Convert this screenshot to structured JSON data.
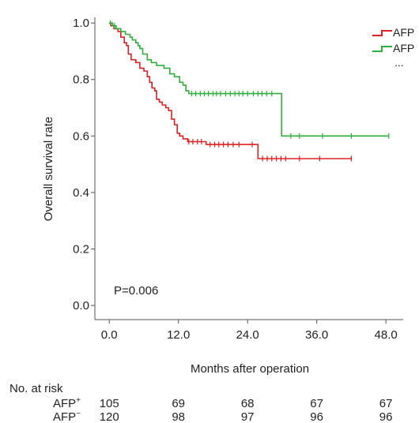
{
  "chart_data": {
    "type": "line",
    "step": true,
    "xlabel": "Months after operation",
    "ylabel": "Overall survival rate",
    "xlim": [
      -2.5,
      51
    ],
    "ylim": [
      -0.05,
      1.02
    ],
    "xticks": [
      "0.0",
      "12.0",
      "24.0",
      "36.0",
      "48.0"
    ],
    "xtick_values": [
      0,
      12,
      24,
      36,
      48
    ],
    "yticks": [
      "0.0",
      "0.2",
      "0.4",
      "0.6",
      "0.8",
      "1.0"
    ],
    "ytick_values": [
      0.0,
      0.2,
      0.4,
      0.6,
      0.8,
      1.0
    ],
    "grid": false,
    "legend": {
      "placement": "top-right",
      "entries": [
        {
          "label": "AFP",
          "color": "#e02020"
        },
        {
          "label": "AFP",
          "color": "#2fae3c"
        }
      ],
      "more": "..."
    },
    "annotation": "P=0.006",
    "series": [
      {
        "color": "#e02020",
        "points": [
          [
            0,
            1.0
          ],
          [
            0.3,
            0.99
          ],
          [
            0.8,
            0.98
          ],
          [
            1.5,
            0.97
          ],
          [
            2.0,
            0.95
          ],
          [
            2.6,
            0.93
          ],
          [
            3.0,
            0.92
          ],
          [
            3.3,
            0.89
          ],
          [
            3.8,
            0.87
          ],
          [
            4.6,
            0.86
          ],
          [
            5.3,
            0.84
          ],
          [
            6.0,
            0.83
          ],
          [
            6.6,
            0.81
          ],
          [
            7.0,
            0.79
          ],
          [
            7.4,
            0.77
          ],
          [
            7.9,
            0.76
          ],
          [
            8.2,
            0.73
          ],
          [
            8.7,
            0.72
          ],
          [
            9.2,
            0.71
          ],
          [
            9.8,
            0.7
          ],
          [
            10.3,
            0.69
          ],
          [
            10.8,
            0.66
          ],
          [
            11.3,
            0.64
          ],
          [
            11.8,
            0.61
          ],
          [
            12.2,
            0.6
          ],
          [
            12.8,
            0.59
          ],
          [
            13.6,
            0.58
          ],
          [
            16.8,
            0.57
          ],
          [
            25.8,
            0.52
          ],
          [
            42.0,
            0.52
          ]
        ],
        "censored": [
          [
            13.8,
            0.58
          ],
          [
            14.5,
            0.58
          ],
          [
            15.3,
            0.58
          ],
          [
            16.0,
            0.58
          ],
          [
            17.5,
            0.57
          ],
          [
            18.3,
            0.57
          ],
          [
            19.0,
            0.57
          ],
          [
            19.8,
            0.57
          ],
          [
            20.6,
            0.57
          ],
          [
            21.5,
            0.57
          ],
          [
            22.5,
            0.57
          ],
          [
            24.8,
            0.57
          ],
          [
            26.6,
            0.52
          ],
          [
            27.4,
            0.52
          ],
          [
            28.2,
            0.52
          ],
          [
            29.0,
            0.52
          ],
          [
            29.8,
            0.52
          ],
          [
            30.6,
            0.52
          ],
          [
            33.0,
            0.52
          ],
          [
            36.5,
            0.52
          ],
          [
            42.0,
            0.52
          ]
        ]
      },
      {
        "color": "#2fae3c",
        "points": [
          [
            0,
            1.0
          ],
          [
            0.6,
            0.99
          ],
          [
            1.2,
            0.98
          ],
          [
            2.0,
            0.97
          ],
          [
            2.8,
            0.96
          ],
          [
            3.6,
            0.95
          ],
          [
            4.0,
            0.94
          ],
          [
            4.6,
            0.93
          ],
          [
            5.0,
            0.92
          ],
          [
            5.3,
            0.91
          ],
          [
            5.8,
            0.89
          ],
          [
            6.6,
            0.87
          ],
          [
            7.3,
            0.86
          ],
          [
            8.2,
            0.85
          ],
          [
            9.5,
            0.84
          ],
          [
            10.5,
            0.82
          ],
          [
            11.3,
            0.81
          ],
          [
            12.2,
            0.79
          ],
          [
            12.8,
            0.78
          ],
          [
            13.3,
            0.76
          ],
          [
            13.8,
            0.75
          ],
          [
            29.8,
            0.75
          ],
          [
            29.9,
            0.6
          ],
          [
            48.5,
            0.6
          ]
        ],
        "censored": [
          [
            0.2,
            1.0
          ],
          [
            0.9,
            0.99
          ],
          [
            14.3,
            0.75
          ],
          [
            15.0,
            0.75
          ],
          [
            15.8,
            0.75
          ],
          [
            16.5,
            0.75
          ],
          [
            17.2,
            0.75
          ],
          [
            18.0,
            0.75
          ],
          [
            18.6,
            0.75
          ],
          [
            19.3,
            0.75
          ],
          [
            20.2,
            0.75
          ],
          [
            21.0,
            0.75
          ],
          [
            21.8,
            0.75
          ],
          [
            22.5,
            0.75
          ],
          [
            23.2,
            0.75
          ],
          [
            24.0,
            0.75
          ],
          [
            25.0,
            0.75
          ],
          [
            25.8,
            0.75
          ],
          [
            26.5,
            0.75
          ],
          [
            27.3,
            0.75
          ],
          [
            28.2,
            0.75
          ],
          [
            31.5,
            0.6
          ],
          [
            33.0,
            0.6
          ],
          [
            37.0,
            0.6
          ],
          [
            42.0,
            0.6
          ],
          [
            48.5,
            0.6
          ]
        ]
      }
    ],
    "risk_table": {
      "title": "No. at risk",
      "rows": [
        {
          "label": "AFP",
          "superscript": "+",
          "values": [
            "105",
            "69",
            "68",
            "67",
            "67"
          ]
        },
        {
          "label": "AFP",
          "superscript": "−",
          "values": [
            "120",
            "98",
            "97",
            "96",
            "96"
          ]
        }
      ]
    }
  }
}
